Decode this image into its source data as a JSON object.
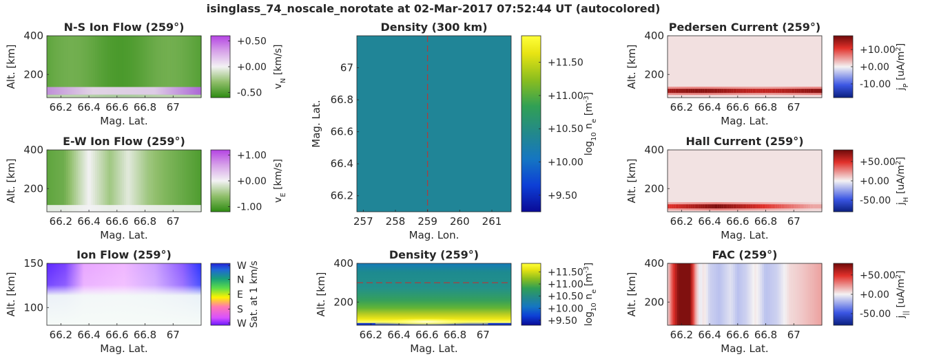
{
  "figure_title": "isinglass_74_noscale_norotate at 02-Mar-2017 07:52:44 UT (autocolored)",
  "chart_data": [
    {
      "id": "ns",
      "type": "heatmap",
      "title": "N-S Ion Flow (259°)",
      "xlabel": "Mag. Lat.",
      "ylabel": "Alt. [km]",
      "xticks": [
        "66.2",
        "66.4",
        "66.6",
        "66.8",
        "67"
      ],
      "x_tick_values": [
        66.2,
        66.4,
        66.6,
        66.8,
        67.0
      ],
      "xlim": [
        66.1,
        67.2
      ],
      "yticks": [
        "200",
        "400"
      ],
      "y_tick_values": [
        200,
        400
      ],
      "ylim": [
        80,
        400
      ],
      "colorbar": {
        "label": "v_N [km/s]",
        "ticks": [
          "+0.50",
          "+0.00",
          "-0.50"
        ],
        "range": [
          -0.6,
          0.6
        ],
        "colormap": "purple-white-green"
      },
      "description_values": {
        "field_above_130km": -0.45,
        "min_altitude_band": 0.4
      }
    },
    {
      "id": "ew",
      "type": "heatmap",
      "title": "E-W Ion Flow (259°)",
      "xlabel": "Mag. Lat.",
      "ylabel": "Alt. [km]",
      "xticks": [
        "66.2",
        "66.4",
        "66.6",
        "66.8",
        "67"
      ],
      "x_tick_values": [
        66.2,
        66.4,
        66.6,
        66.8,
        67.0
      ],
      "xlim": [
        66.1,
        67.2
      ],
      "yticks": [
        "200",
        "400"
      ],
      "y_tick_values": [
        200,
        400
      ],
      "ylim": [
        80,
        400
      ],
      "colorbar": {
        "label": "v_E [km/s]",
        "ticks": [
          "+1.00",
          "+0.00",
          "-1.00"
        ],
        "range": [
          -1.2,
          1.2
        ],
        "colormap": "purple-white-green"
      },
      "profile_by_lat": [
        [
          66.1,
          -0.9
        ],
        [
          66.22,
          -0.8
        ],
        [
          66.33,
          -0.3
        ],
        [
          66.4,
          0.0
        ],
        [
          66.55,
          -0.5
        ],
        [
          66.68,
          -0.1
        ],
        [
          66.82,
          -0.5
        ],
        [
          66.95,
          -0.7
        ],
        [
          67.2,
          -1.0
        ]
      ]
    },
    {
      "id": "ionflow",
      "type": "heatmap",
      "title": "Ion Flow (259°)",
      "xlabel": "Mag. Lat.",
      "ylabel": "Alt. [km]",
      "xticks": [
        "66.2",
        "66.4",
        "66.6",
        "66.8",
        "67"
      ],
      "x_tick_values": [
        66.2,
        66.4,
        66.6,
        66.8,
        67.0
      ],
      "xlim": [
        66.1,
        67.2
      ],
      "yticks": [
        "100",
        "150"
      ],
      "y_tick_values": [
        100,
        150
      ],
      "ylim": [
        80,
        150
      ],
      "colorbar": {
        "label": "Sat. at 1 km/s",
        "ticks": [
          "W",
          "N",
          "E",
          "S",
          "W"
        ],
        "colormap": "direction-cyclic"
      }
    },
    {
      "id": "dens300",
      "type": "heatmap",
      "title": "Density (300 km)",
      "xlabel": "Mag. Lon.",
      "ylabel": "Mag. Lat.",
      "xticks": [
        "257",
        "258",
        "259",
        "260",
        "261"
      ],
      "x_tick_values": [
        257,
        258,
        259,
        260,
        261
      ],
      "xlim": [
        256.8,
        261.6
      ],
      "yticks": [
        "66.2",
        "66.4",
        "66.6",
        "66.8",
        "67"
      ],
      "y_tick_values": [
        66.2,
        66.4,
        66.6,
        66.8,
        67.0
      ],
      "ylim": [
        66.1,
        67.2
      ],
      "marker_line_lon": 259,
      "colorbar": {
        "label": "log10 n_e [m^-3]",
        "ticks": [
          "+11.50",
          "+11.00",
          "+10.50",
          "+10.00",
          "+9.50"
        ],
        "range": [
          9.25,
          11.9
        ],
        "colormap": "parula"
      },
      "field_value": 10.35
    },
    {
      "id": "dens259",
      "type": "heatmap",
      "title": "Density (259°)",
      "xlabel": "Mag. Lat.",
      "ylabel": "Alt. [km]",
      "xticks": [
        "66.2",
        "66.4",
        "66.6",
        "66.8",
        "67"
      ],
      "x_tick_values": [
        66.2,
        66.4,
        66.6,
        66.8,
        67.0
      ],
      "xlim": [
        66.1,
        67.2
      ],
      "yticks": [
        "200",
        "400"
      ],
      "y_tick_values": [
        200,
        400
      ],
      "ylim": [
        80,
        400
      ],
      "marker_line_alt": 300,
      "colorbar": {
        "label": "log10 n_e [m^-3]",
        "ticks": [
          "+11.50",
          "+11.00",
          "+10.50",
          "+10.00",
          "+9.50"
        ],
        "range": [
          9.3,
          11.85
        ],
        "colormap": "parula"
      }
    },
    {
      "id": "ped",
      "type": "heatmap",
      "title": "Pedersen Current (259°)",
      "xlabel": "Mag. Lat.",
      "ylabel": "Alt. [km]",
      "xticks": [
        "66.2",
        "66.4",
        "66.6",
        "66.8",
        "67"
      ],
      "x_tick_values": [
        66.2,
        66.4,
        66.6,
        66.8,
        67.0
      ],
      "xlim": [
        66.1,
        67.2
      ],
      "yticks": [
        "200",
        "400"
      ],
      "y_tick_values": [
        200,
        400
      ],
      "ylim": [
        80,
        400
      ],
      "colorbar": {
        "label": "j_P [uA/m^2]",
        "ticks": [
          "+10.00",
          "+0.00",
          "-10.00"
        ],
        "range": [
          -18,
          18
        ],
        "colormap": "blue-white-red"
      },
      "peak_altitude_km": 115,
      "background_value": 1
    },
    {
      "id": "hall",
      "type": "heatmap",
      "title": "Hall Current (259°)",
      "xlabel": "Mag. Lat.",
      "ylabel": "Alt. [km]",
      "xticks": [
        "66.2",
        "66.4",
        "66.6",
        "66.8",
        "67"
      ],
      "x_tick_values": [
        66.2,
        66.4,
        66.6,
        66.8,
        67.0
      ],
      "xlim": [
        66.1,
        67.2
      ],
      "yticks": [
        "200",
        "400"
      ],
      "y_tick_values": [
        200,
        400
      ],
      "ylim": [
        80,
        400
      ],
      "colorbar": {
        "label": "j_H [uA/m^2]",
        "ticks": [
          "+50.00",
          "+0.00",
          "-50.00"
        ],
        "range": [
          -80,
          80
        ],
        "colormap": "blue-white-red"
      },
      "peak_altitude_km": 108,
      "background_value": 4
    },
    {
      "id": "fac",
      "type": "heatmap",
      "title": "FAC (259°)",
      "xlabel": "Mag. Lat.",
      "ylabel": "Alt. [km]",
      "xticks": [
        "66.2",
        "66.4",
        "66.6",
        "66.8",
        "67"
      ],
      "x_tick_values": [
        66.2,
        66.4,
        66.6,
        66.8,
        67.0
      ],
      "xlim": [
        66.1,
        67.2
      ],
      "yticks": [
        "200",
        "400"
      ],
      "y_tick_values": [
        200,
        400
      ],
      "ylim": [
        80,
        400
      ],
      "colorbar": {
        "label": "j_|| [uA/m^2]",
        "ticks": [
          "+50.00",
          "+0.00",
          "-50.00"
        ],
        "range": [
          -80,
          80
        ],
        "colormap": "blue-white-red"
      },
      "profile_by_lat": [
        [
          66.1,
          5
        ],
        [
          66.14,
          45
        ],
        [
          66.18,
          75
        ],
        [
          66.26,
          75
        ],
        [
          66.3,
          20
        ],
        [
          66.33,
          -5
        ],
        [
          66.36,
          5
        ],
        [
          66.4,
          -10
        ],
        [
          66.47,
          -15
        ],
        [
          66.55,
          -5
        ],
        [
          66.6,
          -15
        ],
        [
          66.66,
          -10
        ],
        [
          66.73,
          3
        ],
        [
          66.8,
          -15
        ],
        [
          66.88,
          -10
        ],
        [
          66.97,
          6
        ],
        [
          67.05,
          10
        ],
        [
          67.2,
          20
        ]
      ]
    }
  ]
}
